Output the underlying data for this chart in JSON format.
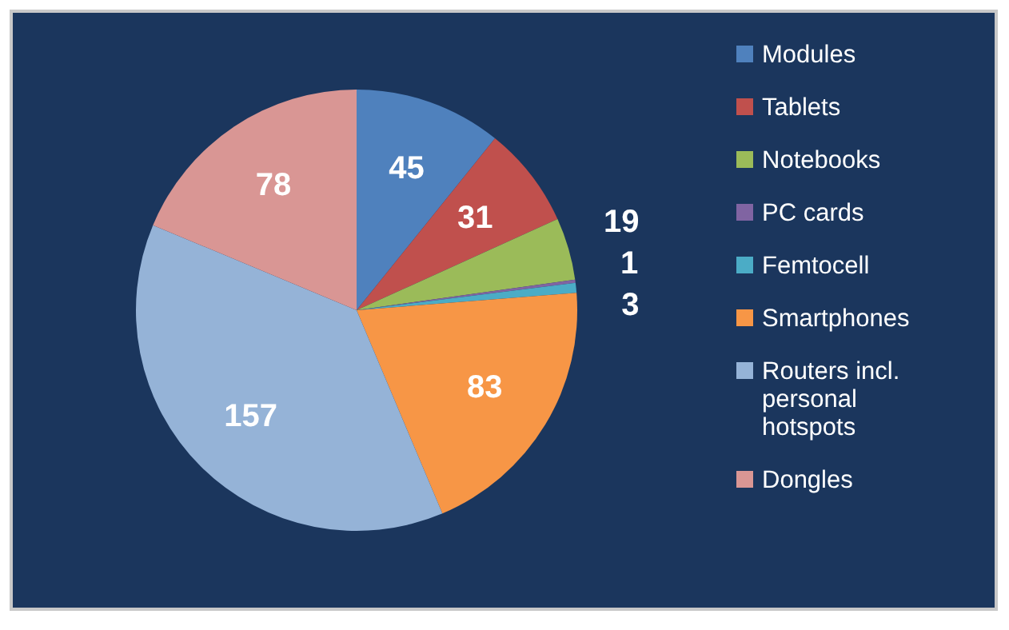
{
  "chart_data": {
    "type": "pie",
    "categories": [
      "Modules",
      "Tablets",
      "Notebooks",
      "PC cards",
      "Femtocell",
      "Smartphones",
      "Routers incl. personal hotspots",
      "Dongles"
    ],
    "values": [
      45,
      31,
      19,
      1,
      3,
      83,
      157,
      78
    ],
    "colors": [
      "#4f81bd",
      "#c0504d",
      "#9bbb59",
      "#8064a2",
      "#4bacc6",
      "#f79646",
      "#95b3d7",
      "#d99694"
    ],
    "data_labels": true,
    "legend": "right"
  }
}
